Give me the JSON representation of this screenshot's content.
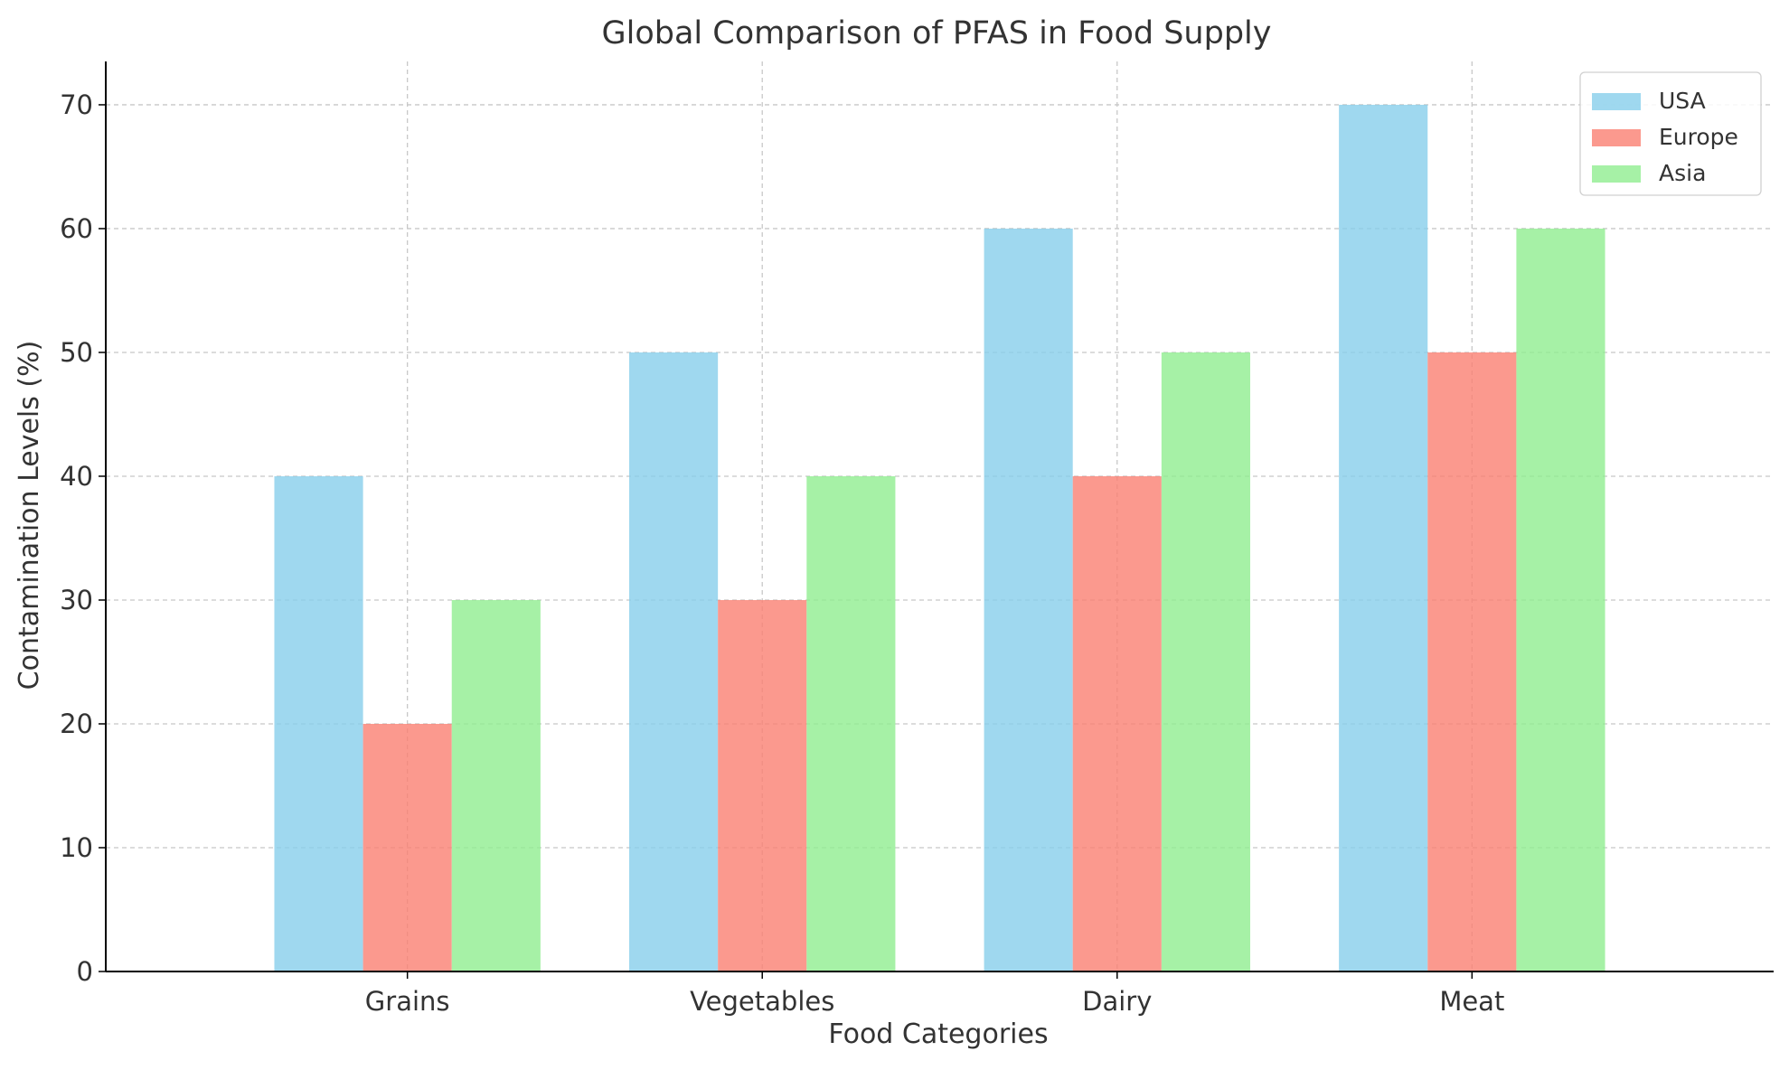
{
  "chart_data": {
    "type": "bar",
    "title": "Global Comparison of PFAS in Food Supply",
    "xlabel": "Food Categories",
    "ylabel": "Contamination Levels (%)",
    "categories": [
      "Grains",
      "Vegetables",
      "Dairy",
      "Meat"
    ],
    "series": [
      {
        "name": "USA",
        "values": [
          40,
          50,
          60,
          70
        ],
        "color": "#87ceeb"
      },
      {
        "name": "Europe",
        "values": [
          20,
          30,
          40,
          50
        ],
        "color": "#fa8072"
      },
      {
        "name": "Asia",
        "values": [
          30,
          40,
          50,
          60
        ],
        "color": "#90ee90"
      }
    ],
    "ylim": [
      0,
      73.5
    ],
    "yticks": [
      0,
      10,
      20,
      30,
      40,
      50,
      60,
      70
    ],
    "grid": true,
    "legend_position": "top-right",
    "colors": {
      "text": "#333333",
      "axis": "#000000",
      "grid": "#c8c8c8"
    }
  }
}
